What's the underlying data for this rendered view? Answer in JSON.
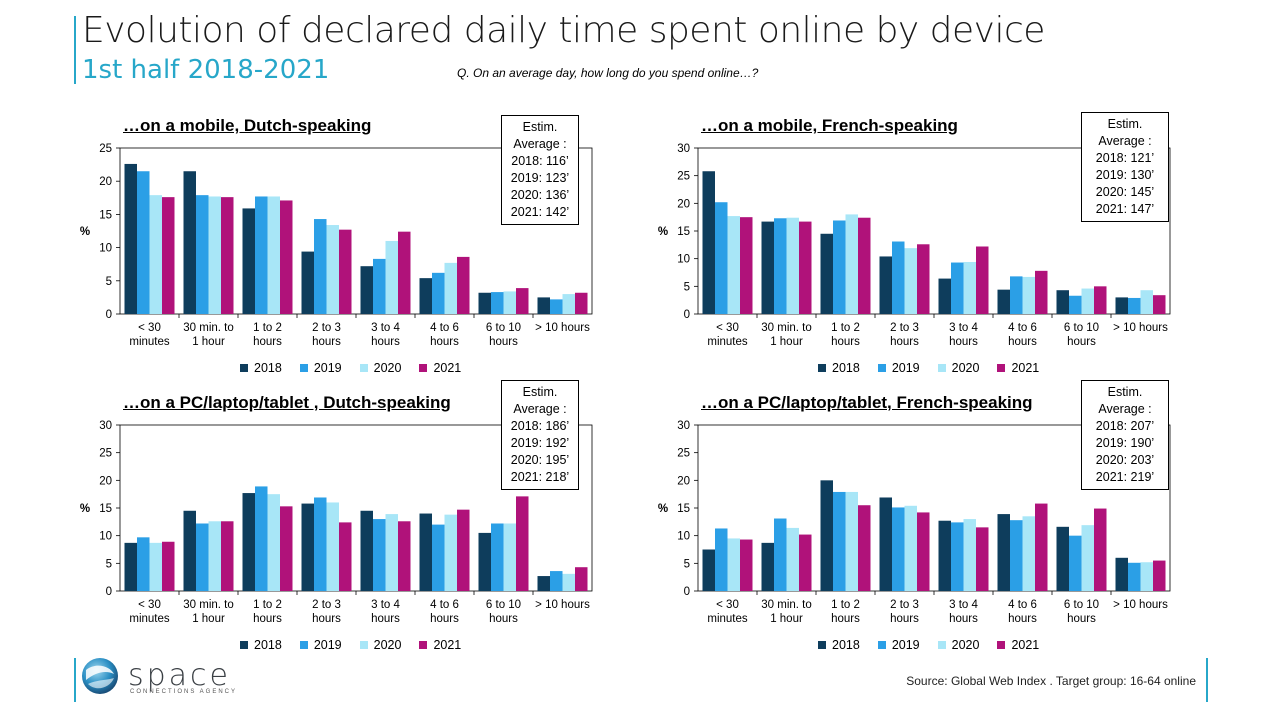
{
  "header": {
    "title": "Evolution of declared daily time spent online by device",
    "subtitle": "1st half 2018-2021",
    "question": "Q. On an average day, how long do you spend online…?"
  },
  "footer": {
    "logo_text": "space",
    "logo_sub": "CONNECTIONS AGENCY",
    "source": "Source: Global Web Index . Target group: 16-64 online"
  },
  "colors": {
    "2018": "#0e3d5c",
    "2019": "#2b9fe6",
    "2020": "#a8e6f7",
    "2021": "#b0127a"
  },
  "chart_data": [
    {
      "type": "bar",
      "title": "…on a mobile, Dutch-speaking",
      "ylabel": "%",
      "ylim": [
        0,
        25
      ],
      "yticks": [
        0,
        5,
        10,
        15,
        20,
        25
      ],
      "categories": [
        "< 30 minutes",
        "30 min. to 1 hour",
        "1 to 2 hours",
        "2 to 3 hours",
        "3 to 4 hours",
        "4 to 6 hours",
        "6 to 10 hours",
        "> 10 hours"
      ],
      "series": [
        {
          "name": "2018",
          "values": [
            22.6,
            21.5,
            15.9,
            9.4,
            7.2,
            5.4,
            3.2,
            2.5
          ]
        },
        {
          "name": "2019",
          "values": [
            21.5,
            17.9,
            17.7,
            14.3,
            8.3,
            6.2,
            3.3,
            2.2
          ]
        },
        {
          "name": "2020",
          "values": [
            17.9,
            17.7,
            17.7,
            13.4,
            11.0,
            7.7,
            3.4,
            3.0
          ]
        },
        {
          "name": "2021",
          "values": [
            17.6,
            17.6,
            17.1,
            12.7,
            12.4,
            8.6,
            3.9,
            3.2
          ]
        }
      ],
      "estim": [
        "Estim.",
        "Average :",
        "2018: 116’",
        "2019: 123’",
        "2020: 136’",
        "2021: 142’"
      ]
    },
    {
      "type": "bar",
      "title": "…on a mobile, French-speaking",
      "ylabel": "%",
      "ylim": [
        0,
        30
      ],
      "yticks": [
        0,
        5,
        10,
        15,
        20,
        25,
        30
      ],
      "categories": [
        "< 30 minutes",
        "30 min. to 1 hour",
        "1 to 2 hours",
        "2 to 3 hours",
        "3 to 4 hours",
        "4 to 6 hours",
        "6 to 10 hours",
        "> 10 hours"
      ],
      "series": [
        {
          "name": "2018",
          "values": [
            25.8,
            16.7,
            14.5,
            10.4,
            6.4,
            4.4,
            4.3,
            3.0
          ]
        },
        {
          "name": "2019",
          "values": [
            20.2,
            17.3,
            16.9,
            13.1,
            9.3,
            6.8,
            3.3,
            2.9
          ]
        },
        {
          "name": "2020",
          "values": [
            17.7,
            17.4,
            18.0,
            11.9,
            9.4,
            6.7,
            4.6,
            4.3
          ]
        },
        {
          "name": "2021",
          "values": [
            17.5,
            16.7,
            17.4,
            12.6,
            12.2,
            7.8,
            5.0,
            3.4
          ]
        }
      ],
      "estim": [
        "Estim.",
        "Average :",
        "2018: 121’",
        "2019: 130’",
        "2020: 145’",
        "2021: 147’"
      ]
    },
    {
      "type": "bar",
      "title": "…on a PC/laptop/tablet , Dutch-speaking",
      "ylabel": "%",
      "ylim": [
        0,
        30
      ],
      "yticks": [
        0,
        5,
        10,
        15,
        20,
        25,
        30
      ],
      "categories": [
        "< 30 minutes",
        "30 min. to 1 hour",
        "1 to 2 hours",
        "2 to 3 hours",
        "3 to 4 hours",
        "4 to 6 hours",
        "6 to 10 hours",
        "> 10 hours"
      ],
      "series": [
        {
          "name": "2018",
          "values": [
            8.7,
            14.5,
            17.7,
            15.8,
            14.5,
            14.0,
            10.5,
            2.7
          ]
        },
        {
          "name": "2019",
          "values": [
            9.7,
            12.2,
            18.9,
            16.9,
            13.0,
            12.0,
            12.2,
            3.6
          ]
        },
        {
          "name": "2020",
          "values": [
            8.7,
            12.6,
            17.5,
            16.0,
            13.9,
            13.8,
            12.2,
            3.1
          ]
        },
        {
          "name": "2021",
          "values": [
            8.9,
            12.6,
            15.3,
            12.4,
            12.6,
            14.7,
            17.1,
            4.3
          ]
        }
      ],
      "estim": [
        "Estim.",
        "Average :",
        "2018: 186’",
        "2019: 192’",
        "2020: 195’",
        "2021: 218’"
      ]
    },
    {
      "type": "bar",
      "title": "…on a PC/laptop/tablet, French-speaking",
      "ylabel": "%",
      "ylim": [
        0,
        30
      ],
      "yticks": [
        0,
        5,
        10,
        15,
        20,
        25,
        30
      ],
      "categories": [
        "< 30 minutes",
        "30 min. to 1 hour",
        "1 to 2 hours",
        "2 to 3 hours",
        "3 to 4 hours",
        "4 to 6 hours",
        "6 to 10 hours",
        "> 10 hours"
      ],
      "series": [
        {
          "name": "2018",
          "values": [
            7.5,
            8.7,
            20.0,
            16.9,
            12.7,
            13.9,
            11.6,
            6.0
          ]
        },
        {
          "name": "2019",
          "values": [
            11.3,
            13.1,
            17.9,
            15.1,
            12.4,
            12.8,
            10.0,
            5.1
          ]
        },
        {
          "name": "2020",
          "values": [
            9.5,
            11.4,
            17.9,
            15.4,
            13.0,
            13.5,
            11.9,
            5.2
          ]
        },
        {
          "name": "2021",
          "values": [
            9.3,
            10.2,
            15.5,
            14.2,
            11.5,
            15.8,
            14.9,
            5.5
          ]
        }
      ],
      "estim": [
        "Estim.",
        "Average :",
        "2018: 207’",
        "2019: 190’",
        "2020: 203’",
        "2021: 219’"
      ]
    }
  ]
}
